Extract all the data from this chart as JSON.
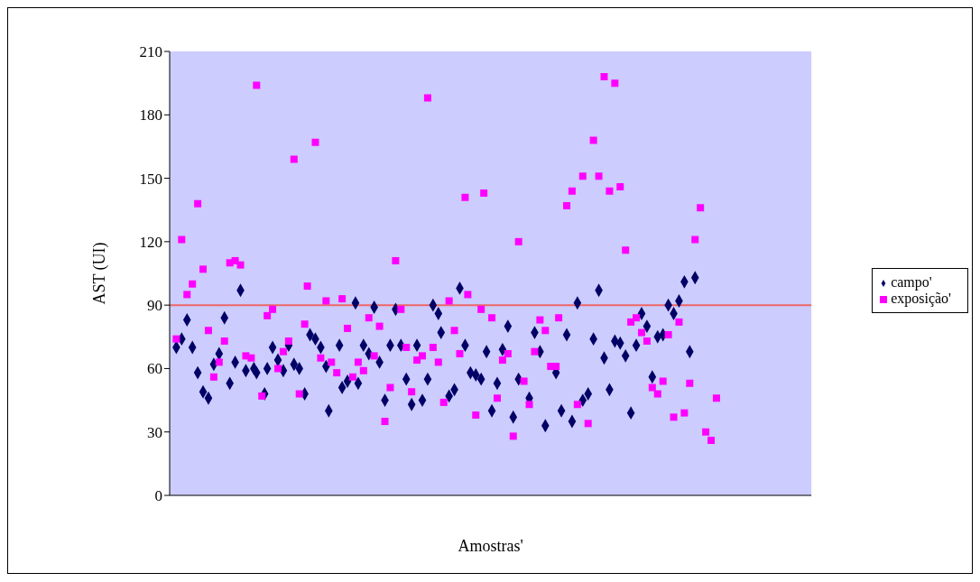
{
  "chart_data": {
    "type": "scatter",
    "xlabel": "Amostras'",
    "ylabel": "AST (UI)",
    "categories": [
      null,
      null,
      null,
      null,
      null,
      null,
      null,
      null,
      null,
      null,
      null,
      null,
      null,
      null,
      null,
      null,
      null,
      null,
      null,
      null,
      null,
      null,
      null,
      null,
      null,
      null,
      null,
      null,
      null,
      null,
      null,
      null,
      null,
      null,
      null,
      null,
      null,
      null,
      null,
      null,
      null,
      null,
      null,
      null,
      null,
      null,
      null,
      null,
      null,
      null,
      null,
      null,
      null,
      null,
      null,
      null,
      null,
      null,
      null,
      null,
      null,
      null,
      null,
      null,
      null,
      null,
      null,
      null,
      null,
      null,
      null,
      null,
      null,
      null,
      null,
      null,
      null,
      null,
      null,
      null,
      null,
      null,
      null,
      null,
      null,
      null,
      null,
      null,
      null,
      null,
      null,
      null,
      null,
      null,
      null,
      null,
      null,
      null,
      null,
      null,
      null,
      null,
      null,
      null,
      null,
      null,
      null,
      null,
      null,
      null,
      null,
      null,
      null,
      null,
      null,
      null,
      null,
      null,
      null,
      null,
      null,
      null,
      null,
      null,
      null,
      null,
      null,
      null,
      null,
      null,
      null,
      null,
      null,
      null,
      null,
      null,
      null,
      null,
      null,
      null,
      null,
      null,
      null,
      null,
      null,
      null,
      null,
      null,
      null,
      null,
      null,
      null,
      null,
      null,
      null,
      null,
      null,
      null,
      null,
      null,
      null,
      null,
      null,
      null,
      null,
      null,
      null,
      null,
      null,
      null,
      null,
      null,
      null,
      null,
      null,
      null,
      null,
      null,
      null,
      null,
      null,
      null,
      null,
      null,
      null,
      null,
      null,
      null,
      null,
      null,
      null,
      null,
      null,
      null,
      null,
      null,
      null,
      null,
      null,
      null,
      null,
      null,
      null,
      null,
      null,
      null,
      null,
      null,
      null,
      null,
      null,
      null,
      null,
      null,
      null,
      null,
      null,
      null,
      null,
      null,
      null,
      null,
      null,
      null,
      null,
      null,
      null,
      null,
      null,
      null,
      null,
      null,
      null,
      null,
      null,
      null,
      null,
      null,
      null,
      null
    ],
    "series": [
      {
        "name": "campo'",
        "color": "#000066",
        "marker": "diamond",
        "values": [
          null,
          null,
          70,
          null,
          74,
          null,
          83,
          null,
          70,
          null,
          58,
          null,
          49,
          null,
          46,
          null,
          62,
          null,
          67,
          null,
          84,
          null,
          53,
          null,
          63,
          null,
          97,
          null,
          59,
          null,
          null,
          60,
          58,
          null,
          null,
          48,
          60,
          null,
          70,
          null,
          64,
          null,
          59,
          null,
          71,
          null,
          62,
          null,
          60,
          null,
          48,
          null,
          76,
          null,
          74,
          null,
          70,
          null,
          61,
          40,
          null,
          null,
          null,
          71,
          51,
          null,
          54,
          null,
          null,
          91,
          53,
          null,
          71,
          null,
          67,
          null,
          89,
          null,
          63,
          null,
          45,
          null,
          71,
          null,
          88,
          null,
          71,
          null,
          55,
          null,
          43,
          null,
          71,
          null,
          45,
          null,
          55,
          null,
          90,
          null,
          86,
          77,
          null,
          null,
          47,
          null,
          50,
          null,
          98,
          null,
          71,
          null,
          58,
          null,
          57,
          null,
          55,
          null,
          68,
          null,
          40,
          null,
          53,
          null,
          69,
          null,
          80,
          null,
          37,
          null,
          55,
          null,
          null,
          null,
          46,
          null,
          77,
          null,
          68,
          null,
          33,
          null,
          null,
          null,
          58,
          null,
          40,
          null,
          76,
          null,
          35,
          null,
          91,
          null,
          45,
          null,
          48,
          null,
          74,
          null,
          97,
          null,
          65,
          null,
          50,
          null,
          73,
          null,
          72,
          null,
          66,
          null,
          39,
          null,
          71,
          null,
          86,
          null,
          80,
          null,
          56,
          null,
          75,
          null,
          76,
          null,
          90,
          null,
          86,
          null,
          92,
          null,
          101,
          null,
          68,
          null,
          103,
          null,
          null,
          null,
          null,
          null,
          null,
          null,
          null,
          null,
          null,
          null,
          null,
          null,
          null,
          null,
          null,
          null,
          null,
          null,
          null,
          null,
          null,
          null,
          null,
          null,
          null,
          null,
          null,
          null,
          null,
          null,
          null,
          null,
          null,
          null,
          null,
          null,
          null,
          null,
          null,
          null,
          null,
          null
        ]
      },
      {
        "name": "exposição'",
        "color": "#ff00ff",
        "marker": "square",
        "values": [
          null,
          null,
          74,
          null,
          121,
          null,
          95,
          null,
          100,
          null,
          138,
          null,
          107,
          null,
          78,
          null,
          56,
          null,
          63,
          null,
          73,
          null,
          110,
          null,
          111,
          null,
          109,
          null,
          66,
          null,
          65,
          null,
          194,
          null,
          47,
          null,
          85,
          null,
          88,
          null,
          60,
          null,
          68,
          null,
          73,
          null,
          159,
          null,
          48,
          null,
          81,
          99,
          null,
          null,
          167,
          null,
          65,
          null,
          92,
          null,
          63,
          null,
          58,
          null,
          93,
          null,
          79,
          null,
          56,
          null,
          63,
          null,
          59,
          null,
          84,
          null,
          66,
          null,
          80,
          null,
          35,
          null,
          51,
          null,
          111,
          null,
          88,
          null,
          70,
          null,
          49,
          null,
          64,
          null,
          66,
          null,
          188,
          null,
          70,
          null,
          63,
          null,
          44,
          null,
          92,
          null,
          78,
          null,
          67,
          null,
          141,
          95,
          null,
          null,
          38,
          null,
          88,
          143,
          null,
          null,
          84,
          null,
          46,
          null,
          64,
          null,
          67,
          null,
          28,
          null,
          120,
          null,
          54,
          null,
          43,
          null,
          68,
          null,
          83,
          null,
          78,
          null,
          61,
          null,
          61,
          84,
          null,
          null,
          137,
          null,
          144,
          null,
          43,
          null,
          151,
          null,
          34,
          null,
          168,
          null,
          151,
          null,
          198,
          null,
          144,
          null,
          195,
          null,
          146,
          null,
          116,
          null,
          82,
          null,
          84,
          null,
          77,
          null,
          73,
          null,
          51,
          null,
          48,
          null,
          54,
          null,
          76,
          null,
          37,
          null,
          82,
          null,
          39,
          null,
          53,
          null,
          121,
          null,
          136,
          null,
          30,
          null,
          26,
          null,
          46,
          null,
          null,
          null,
          null,
          null,
          null,
          null,
          null,
          null,
          null,
          null,
          null,
          null,
          null,
          null,
          null,
          null,
          null,
          null,
          null,
          null,
          null,
          null,
          null,
          null,
          null,
          null,
          null,
          null,
          null,
          null,
          null,
          null,
          null,
          null
        ]
      }
    ],
    "ylim": [
      0,
      210
    ],
    "yticks": [
      0,
      30,
      60,
      90,
      120,
      150,
      180,
      210
    ],
    "ref_lines": [
      {
        "axis": "y",
        "value": 90,
        "color": "#ee6666"
      }
    ],
    "legend": "right"
  }
}
